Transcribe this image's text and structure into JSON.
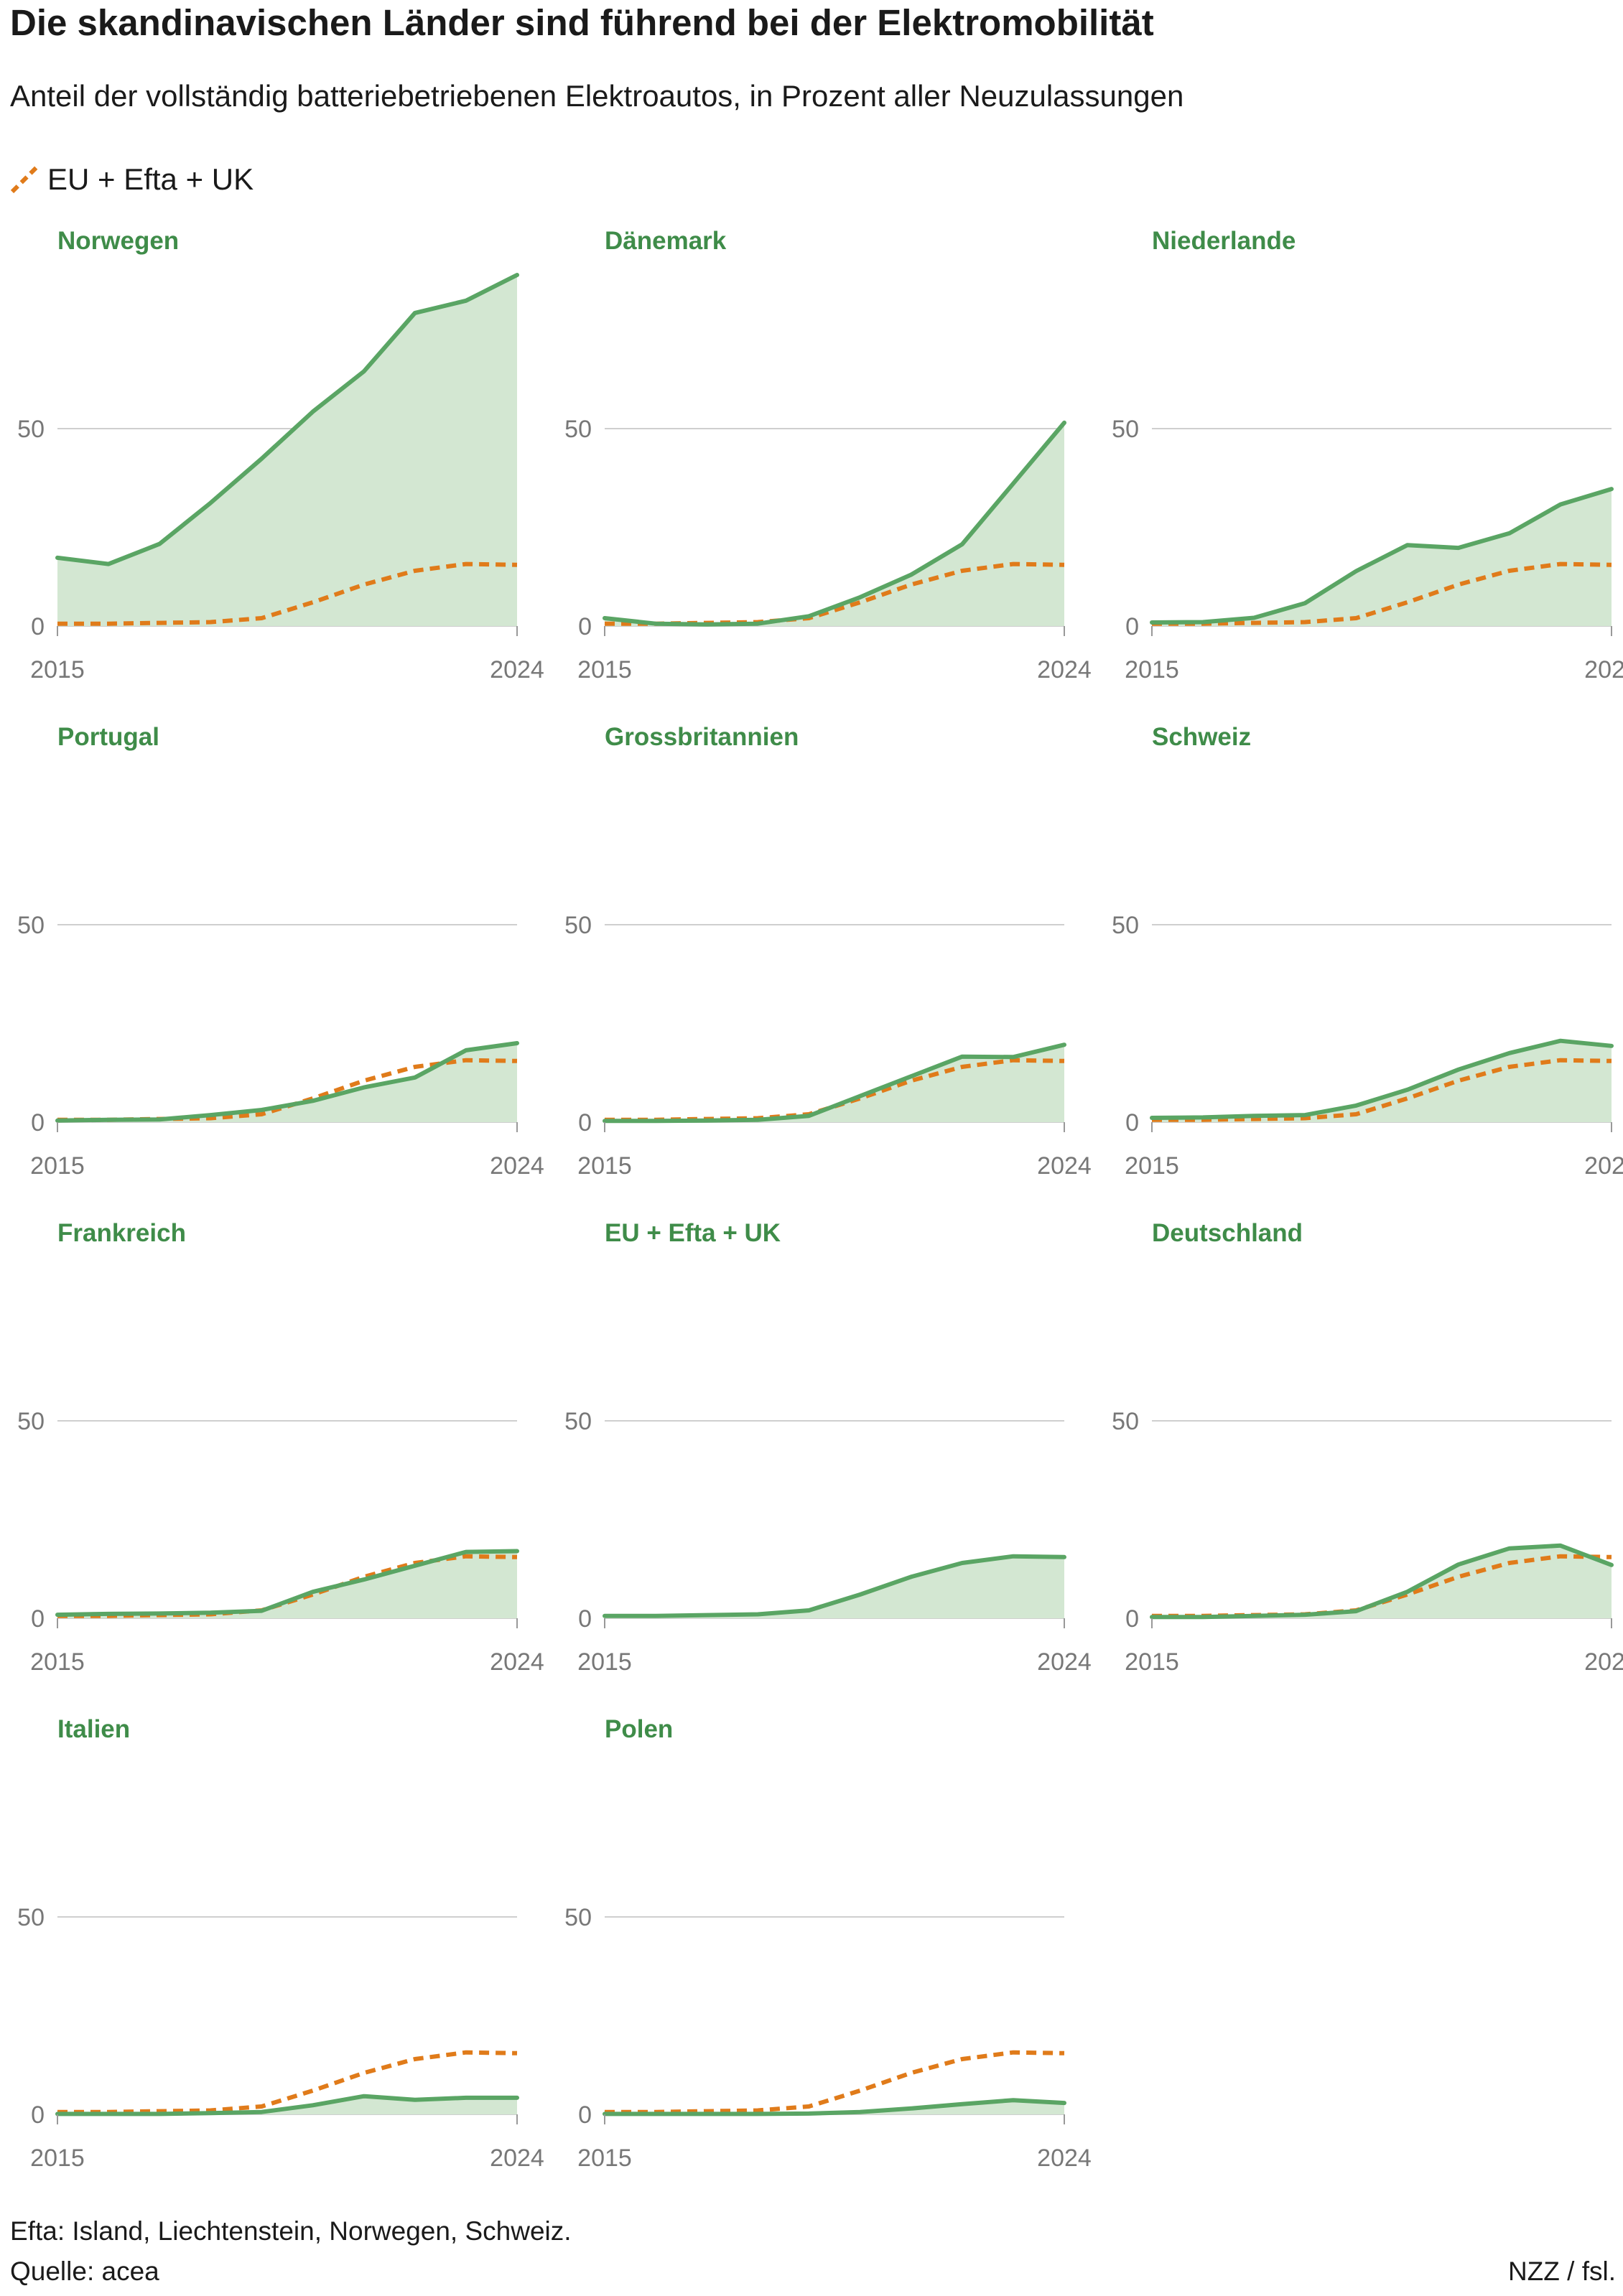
{
  "title": "Die skandinavischen Länder sind führend bei der Elektromobilität",
  "subtitle": "Anteil der vollständig batteriebetriebenen Elektroautos, in Prozent aller Neuzulassungen",
  "legend": {
    "label": "EU + Efta + UK",
    "color": "#e07b1a",
    "style": "dashed"
  },
  "footer": {
    "note": "Efta: Island, Liechtenstein, Norwegen, Schweiz.",
    "source": "Quelle: acea",
    "credit": "NZZ / fsl."
  },
  "colors": {
    "country": "#5aa564",
    "area": "#d3e7d2",
    "reference": "#e07b1a",
    "grid": "#cfcfcf",
    "title": "#3f8c49"
  },
  "chart_data": {
    "type": "area",
    "x": [
      2015,
      2016,
      2017,
      2018,
      2019,
      2020,
      2021,
      2022,
      2023,
      2024
    ],
    "x_tick_labels": [
      "2015",
      "2024"
    ],
    "y_ticks": [
      0,
      50
    ],
    "ylim": [
      0,
      90
    ],
    "grid": true,
    "legend_position": "top-left",
    "reference_series": {
      "name": "EU + Efta + UK",
      "values": [
        0.6,
        0.6,
        0.8,
        1.0,
        2.0,
        6.0,
        10.5,
        14.0,
        15.7,
        15.5
      ]
    },
    "panels": [
      {
        "name": "Norwegen",
        "values": [
          17.3,
          15.7,
          20.8,
          31.2,
          42.4,
          54.3,
          64.5,
          79.3,
          82.4,
          88.9
        ],
        "show_reference": true
      },
      {
        "name": "Dänemark",
        "values": [
          2.0,
          0.6,
          0.4,
          0.6,
          2.5,
          7.3,
          13.0,
          20.7,
          36.1,
          51.5
        ],
        "show_reference": true
      },
      {
        "name": "Niederlande",
        "values": [
          0.9,
          1.0,
          2.1,
          5.8,
          13.9,
          20.5,
          19.8,
          23.5,
          30.8,
          34.7
        ],
        "show_reference": true
      },
      {
        "name": "Portugal",
        "values": [
          0.4,
          0.6,
          0.7,
          1.8,
          3.1,
          5.4,
          8.8,
          11.3,
          18.2,
          20.0
        ],
        "show_reference": true
      },
      {
        "name": "Grossbritannien",
        "values": [
          0.3,
          0.3,
          0.4,
          0.6,
          1.6,
          6.6,
          11.6,
          16.6,
          16.5,
          19.6
        ],
        "show_reference": true
      },
      {
        "name": "Schweiz",
        "values": [
          1.1,
          1.2,
          1.6,
          1.8,
          4.2,
          8.2,
          13.3,
          17.5,
          20.6,
          19.3
        ],
        "show_reference": true
      },
      {
        "name": "Frankreich",
        "values": [
          0.9,
          1.1,
          1.2,
          1.4,
          1.9,
          6.7,
          9.8,
          13.3,
          16.8,
          17.0
        ],
        "show_reference": true
      },
      {
        "name": "EU + Efta + UK",
        "values": [
          0.6,
          0.6,
          0.8,
          1.0,
          2.0,
          6.0,
          10.5,
          14.0,
          15.7,
          15.5
        ],
        "show_reference": false
      },
      {
        "name": "Deutschland",
        "values": [
          0.3,
          0.3,
          0.6,
          0.9,
          1.8,
          6.7,
          13.6,
          17.7,
          18.4,
          13.5
        ],
        "show_reference": true
      },
      {
        "name": "Italien",
        "values": [
          0.1,
          0.1,
          0.1,
          0.3,
          0.6,
          2.3,
          4.6,
          3.7,
          4.2,
          4.2
        ],
        "show_reference": true
      },
      {
        "name": "Polen",
        "values": [
          0.1,
          0.1,
          0.1,
          0.1,
          0.2,
          0.6,
          1.5,
          2.6,
          3.6,
          2.9
        ],
        "show_reference": true
      }
    ]
  }
}
